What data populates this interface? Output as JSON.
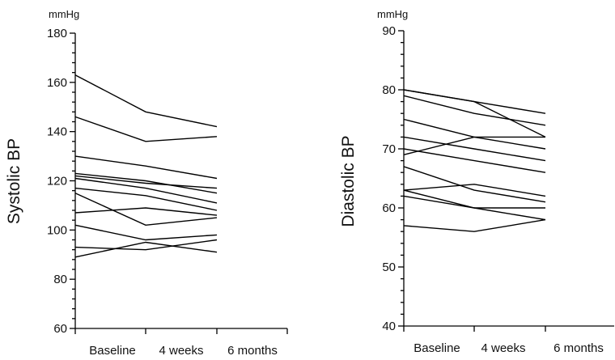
{
  "chart_data": [
    {
      "type": "line",
      "ylabel": "Systolic BP",
      "unit": "mmHg",
      "categories": [
        "Baseline",
        "4 weeks",
        "6 months"
      ],
      "ylim": [
        60,
        180
      ],
      "yticks": [
        60,
        80,
        100,
        120,
        140,
        160,
        180
      ],
      "series": [
        {
          "values": [
            163,
            148,
            142
          ]
        },
        {
          "values": [
            146,
            136,
            138
          ]
        },
        {
          "values": [
            130,
            126,
            121
          ]
        },
        {
          "values": [
            123,
            120,
            115
          ]
        },
        {
          "values": [
            122,
            119,
            117
          ]
        },
        {
          "values": [
            121,
            117,
            111
          ]
        },
        {
          "values": [
            117,
            114,
            108
          ]
        },
        {
          "values": [
            115,
            102,
            105
          ]
        },
        {
          "values": [
            107,
            109,
            106
          ]
        },
        {
          "values": [
            102,
            96,
            98
          ]
        },
        {
          "values": [
            93,
            92,
            96
          ]
        },
        {
          "values": [
            89,
            95,
            91
          ]
        }
      ]
    },
    {
      "type": "line",
      "ylabel": "Diastolic BP",
      "unit": "mmHg",
      "categories": [
        "Baseline",
        "4 weeks",
        "6 months"
      ],
      "ylim": [
        40,
        90
      ],
      "yticks": [
        40,
        50,
        60,
        70,
        80,
        90
      ],
      "series": [
        {
          "values": [
            80,
            78,
            76
          ]
        },
        {
          "values": [
            80,
            78,
            72
          ]
        },
        {
          "values": [
            79,
            76,
            74
          ]
        },
        {
          "values": [
            75,
            72,
            70
          ]
        },
        {
          "values": [
            72,
            70,
            68
          ]
        },
        {
          "values": [
            70,
            68,
            66
          ]
        },
        {
          "values": [
            69,
            72,
            72
          ]
        },
        {
          "values": [
            67,
            63,
            61
          ]
        },
        {
          "values": [
            63,
            64,
            62
          ]
        },
        {
          "values": [
            63,
            60,
            60
          ]
        },
        {
          "values": [
            62,
            60,
            58
          ]
        },
        {
          "values": [
            57,
            56,
            58
          ]
        }
      ]
    }
  ]
}
